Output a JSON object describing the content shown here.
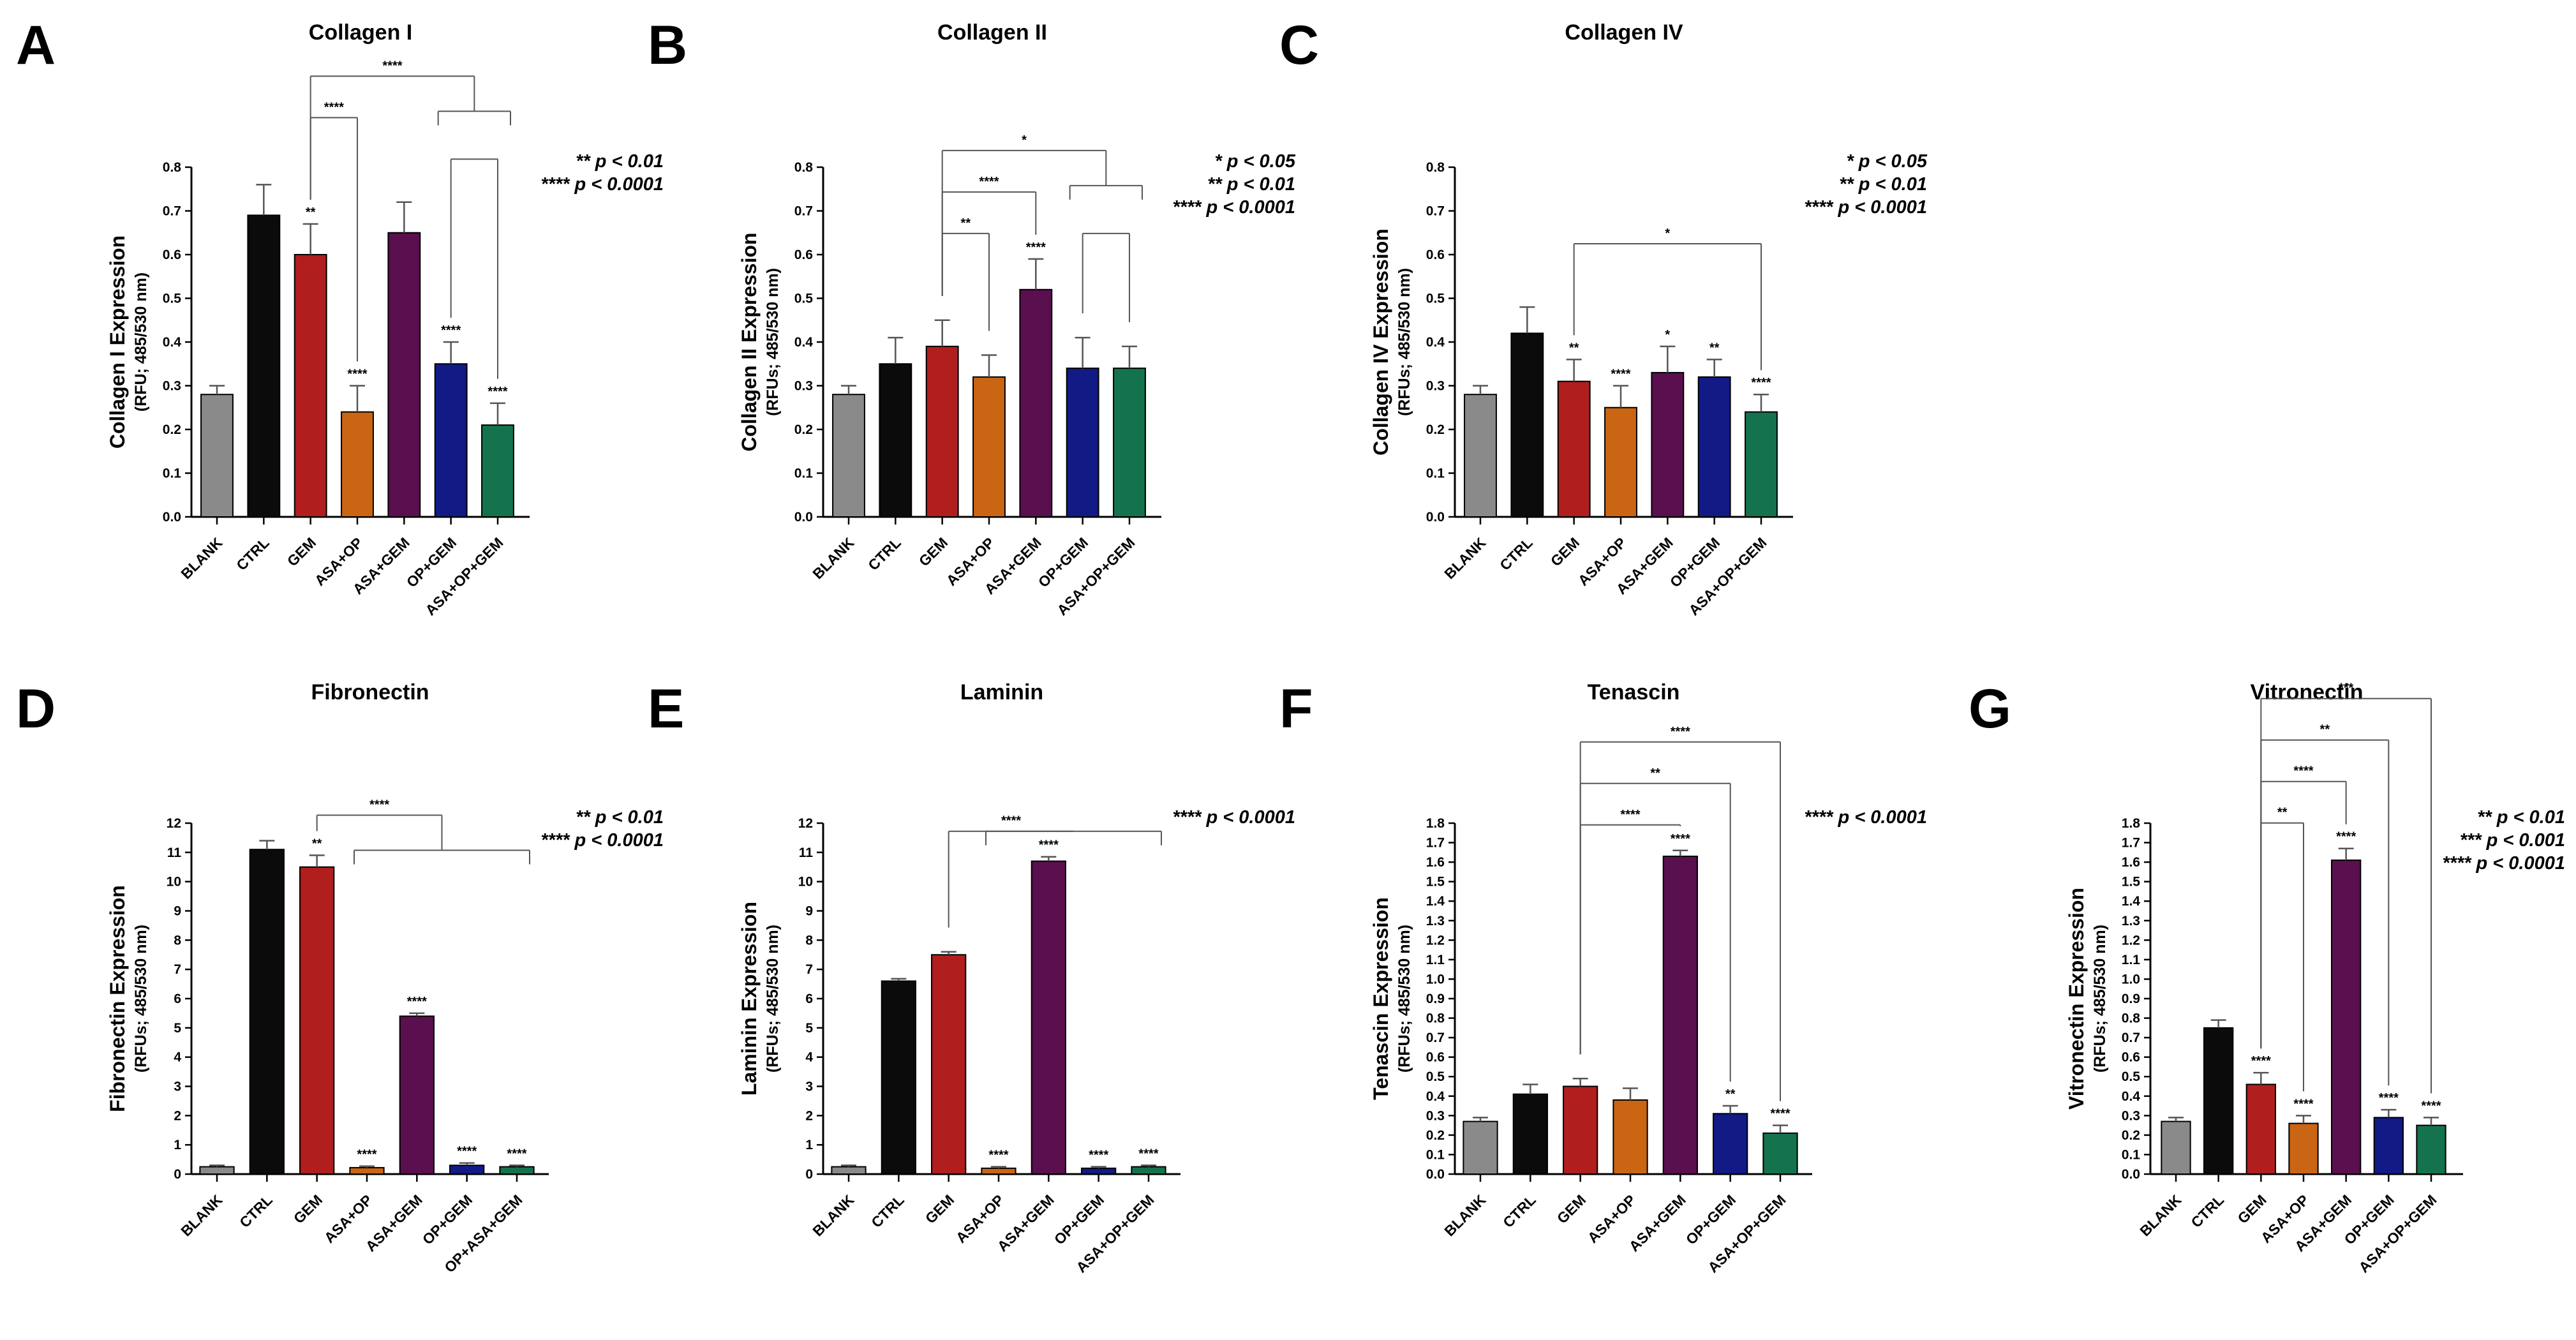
{
  "colors": {
    "BLANK": "#8a8a8a",
    "CTRL": "#0b0b0b",
    "GEM": "#b01e1e",
    "ASA+OP": "#c96513",
    "ASA+GEM": "#5a0f4e",
    "OP+GEM": "#121a86",
    "ASA+OP+GEM": "#14734c",
    "OP+ASA+GEM": "#14734c"
  },
  "chart_data": [
    {
      "panel": "A",
      "type": "bar",
      "title": "Collagen I",
      "ylabel": "Collagen I Expression",
      "yunits": "(RFU; 485/530 nm)",
      "ylim": [
        0,
        0.8
      ],
      "ticks": [
        "0.0",
        "0.1",
        "0.2",
        "0.3",
        "0.4",
        "0.5",
        "0.6",
        "0.7",
        "0.8"
      ],
      "categories": [
        "BLANK",
        "CTRL",
        "GEM",
        "ASA+OP",
        "ASA+GEM",
        "OP+GEM",
        "ASA+OP+GEM"
      ],
      "values": [
        0.28,
        0.69,
        0.6,
        0.24,
        0.65,
        0.35,
        0.21
      ],
      "errors": [
        0.02,
        0.07,
        0.07,
        0.06,
        0.07,
        0.05,
        0.05
      ],
      "bar_sig": [
        "",
        "",
        "**",
        "****",
        "",
        "****",
        "****"
      ],
      "brackets": [
        {
          "label": "****",
          "from": 2,
          "to": [
            3
          ],
          "level": 2
        },
        {
          "label": "****",
          "from": 2,
          "to": [
            5,
            6
          ],
          "level": 3
        },
        {
          "label": "",
          "from": 5,
          "to": [
            6
          ],
          "level": 1
        }
      ],
      "pvalues": [
        "** p < 0.01",
        "**** p < 0.0001"
      ]
    },
    {
      "panel": "B",
      "type": "bar",
      "title": "Collagen II",
      "ylabel": "Collagen II Expression",
      "yunits": "(RFUs; 485/530 nm)",
      "ylim": [
        0,
        0.8
      ],
      "ticks": [
        "0.0",
        "0.1",
        "0.2",
        "0.3",
        "0.4",
        "0.5",
        "0.6",
        "0.7",
        "0.8"
      ],
      "categories": [
        "BLANK",
        "CTRL",
        "GEM",
        "ASA+OP",
        "ASA+GEM",
        "OP+GEM",
        "ASA+OP+GEM"
      ],
      "values": [
        0.28,
        0.35,
        0.39,
        0.32,
        0.52,
        0.34,
        0.34
      ],
      "errors": [
        0.02,
        0.06,
        0.06,
        0.05,
        0.07,
        0.07,
        0.05
      ],
      "bar_sig": [
        "",
        "",
        "",
        "",
        "****",
        "",
        ""
      ],
      "brackets": [
        {
          "label": "**",
          "from": 2,
          "to": [
            3
          ],
          "level": 1
        },
        {
          "label": "****",
          "from": 2,
          "to": [
            4
          ],
          "level": 2
        },
        {
          "label": "*",
          "from": 2,
          "to": [
            5,
            6
          ],
          "level": 3
        },
        {
          "label": "",
          "from": 5,
          "to": [
            6
          ],
          "level": 1
        }
      ],
      "pvalues": [
        "* p < 0.05",
        "** p < 0.01",
        "**** p < 0.0001"
      ]
    },
    {
      "panel": "C",
      "type": "bar",
      "title": "Collagen IV",
      "ylabel": "Collagen IV Expression",
      "yunits": "(RFUs; 485/530 nm)",
      "ylim": [
        0,
        0.8
      ],
      "ticks": [
        "0.0",
        "0.1",
        "0.2",
        "0.3",
        "0.4",
        "0.5",
        "0.6",
        "0.7",
        "0.8"
      ],
      "categories": [
        "BLANK",
        "CTRL",
        "GEM",
        "ASA+OP",
        "ASA+GEM",
        "OP+GEM",
        "ASA+OP+GEM"
      ],
      "values": [
        0.28,
        0.42,
        0.31,
        0.25,
        0.33,
        0.32,
        0.24
      ],
      "errors": [
        0.02,
        0.06,
        0.05,
        0.05,
        0.06,
        0.04,
        0.04
      ],
      "bar_sig": [
        "",
        "",
        "**",
        "****",
        "*",
        "**",
        "****"
      ],
      "brackets": [
        {
          "label": "*",
          "from": 2,
          "to": [
            6
          ],
          "level": 1
        }
      ],
      "pvalues": [
        "* p < 0.05",
        "** p < 0.01",
        "**** p < 0.0001"
      ]
    },
    {
      "panel": "D",
      "type": "bar",
      "title": "Fibronectin",
      "ylabel": "Fibronectin Expression",
      "yunits": "(RFUs; 485/530 nm)",
      "ylim": [
        0,
        12
      ],
      "ticks": [
        "0",
        "1",
        "2",
        "3",
        "4",
        "5",
        "6",
        "7",
        "8",
        "9",
        "10",
        "11",
        "12"
      ],
      "categories": [
        "BLANK",
        "CTRL",
        "GEM",
        "ASA+OP",
        "ASA+GEM",
        "OP+GEM",
        "OP+ASA+GEM"
      ],
      "values": [
        0.25,
        11.1,
        10.5,
        0.22,
        5.4,
        0.3,
        0.25
      ],
      "errors": [
        0.05,
        0.3,
        0.4,
        0.05,
        0.1,
        0.08,
        0.05
      ],
      "bar_sig": [
        "",
        "",
        "**",
        "****",
        "****",
        "****",
        "****"
      ],
      "brackets": [
        {
          "label": "****",
          "from": 2,
          "to": [
            3,
            4,
            5,
            6
          ],
          "level": 1
        }
      ],
      "pvalues": [
        "** p < 0.01",
        "**** p < 0.0001"
      ]
    },
    {
      "panel": "E",
      "type": "bar",
      "title": "Laminin",
      "ylabel": "Laminin Expression",
      "yunits": "(RFUs; 485/530 nm)",
      "ylim": [
        0,
        12
      ],
      "ticks": [
        "0",
        "1",
        "2",
        "3",
        "4",
        "5",
        "6",
        "7",
        "8",
        "9",
        "10",
        "11",
        "12"
      ],
      "categories": [
        "BLANK",
        "CTRL",
        "GEM",
        "ASA+OP",
        "ASA+GEM",
        "OP+GEM",
        "ASA+OP+GEM"
      ],
      "values": [
        0.25,
        6.6,
        7.5,
        0.2,
        10.7,
        0.2,
        0.25
      ],
      "errors": [
        0.05,
        0.08,
        0.1,
        0.05,
        0.15,
        0.05,
        0.05
      ],
      "bar_sig": [
        "",
        "",
        "",
        "****",
        "****",
        "****",
        "****"
      ],
      "brackets": [
        {
          "label": "****",
          "from": 2,
          "to": [
            3,
            4,
            5,
            6
          ],
          "level": 1
        }
      ],
      "pvalues": [
        "**** p < 0.0001"
      ]
    },
    {
      "panel": "F",
      "type": "bar",
      "title": "Tenascin",
      "ylabel": "Tenascin Expression",
      "yunits": "(RFUs; 485/530 nm)",
      "ylim": [
        0,
        1.8
      ],
      "ticks": [
        "0.0",
        "0.1",
        "0.2",
        "0.3",
        "0.4",
        "0.5",
        "0.6",
        "0.7",
        "0.8",
        "0.9",
        "1.0",
        "1.1",
        "1.2",
        "1.3",
        "1.4",
        "1.5",
        "1.6",
        "1.7",
        "1.8"
      ],
      "categories": [
        "BLANK",
        "CTRL",
        "GEM",
        "ASA+OP",
        "ASA+GEM",
        "OP+GEM",
        "ASA+OP+GEM"
      ],
      "values": [
        0.27,
        0.41,
        0.45,
        0.38,
        1.63,
        0.31,
        0.21
      ],
      "errors": [
        0.02,
        0.05,
        0.04,
        0.06,
        0.03,
        0.04,
        0.04
      ],
      "bar_sig": [
        "",
        "",
        "",
        "",
        "****",
        "**",
        "****"
      ],
      "brackets": [
        {
          "label": "****",
          "from": 2,
          "to": [
            4
          ],
          "level": 1
        },
        {
          "label": "**",
          "from": 2,
          "to": [
            5
          ],
          "level": 2
        },
        {
          "label": "****",
          "from": 2,
          "to": [
            6
          ],
          "level": 3
        }
      ],
      "pvalues": [
        "**** p < 0.0001"
      ]
    },
    {
      "panel": "G",
      "type": "bar",
      "title": "Vitronectin",
      "ylabel": "Vitronectin Expression",
      "yunits": "(RFUs; 485/530 nm)",
      "ylim": [
        0,
        1.8
      ],
      "ticks": [
        "0.0",
        "0.1",
        "0.2",
        "0.3",
        "0.4",
        "0.5",
        "0.6",
        "0.7",
        "0.8",
        "0.9",
        "1.0",
        "1.1",
        "1.2",
        "1.3",
        "1.4",
        "1.5",
        "1.6",
        "1.7",
        "1.8"
      ],
      "categories": [
        "BLANK",
        "CTRL",
        "GEM",
        "ASA+OP",
        "ASA+GEM",
        "OP+GEM",
        "ASA+OP+GEM"
      ],
      "values": [
        0.27,
        0.75,
        0.46,
        0.26,
        1.61,
        0.29,
        0.25
      ],
      "errors": [
        0.02,
        0.04,
        0.06,
        0.04,
        0.06,
        0.04,
        0.04
      ],
      "bar_sig": [
        "",
        "",
        "****",
        "****",
        "****",
        "****",
        "****"
      ],
      "brackets": [
        {
          "label": "**",
          "from": 2,
          "to": [
            3
          ],
          "level": 1
        },
        {
          "label": "****",
          "from": 2,
          "to": [
            4
          ],
          "level": 2
        },
        {
          "label": "**",
          "from": 2,
          "to": [
            5
          ],
          "level": 3
        },
        {
          "label": "***",
          "from": 2,
          "to": [
            6
          ],
          "level": 4
        }
      ],
      "pvalues": [
        "** p < 0.01",
        "*** p < 0.001",
        "**** p < 0.0001"
      ]
    }
  ]
}
